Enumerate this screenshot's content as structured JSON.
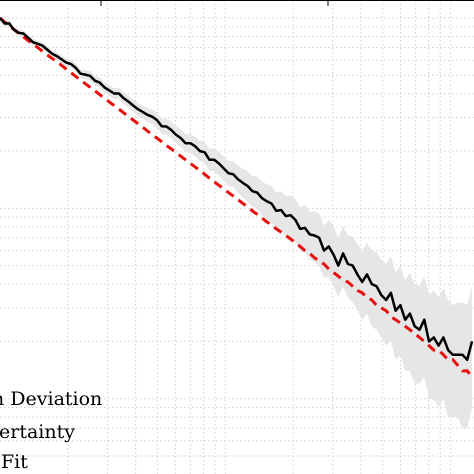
{
  "chart_data": {
    "type": "line",
    "scale": "log-log",
    "grid": true,
    "legend": {
      "placement": "bottom-left",
      "entries": [
        "n Deviation",
        "ertainty",
        "Fit"
      ]
    },
    "x": [
      1.0,
      1.05,
      1.1,
      1.15,
      1.21,
      1.27,
      1.33,
      1.4,
      1.47,
      1.54,
      1.62,
      1.7,
      1.79,
      1.88,
      1.97,
      2.07,
      2.17,
      2.28,
      2.39,
      2.51,
      2.64,
      2.77,
      2.91,
      3.05,
      3.21,
      3.37,
      3.53,
      3.71,
      3.9,
      4.09,
      4.3,
      4.51,
      4.74,
      4.97,
      5.22,
      5.48,
      5.76,
      6.04,
      6.35,
      6.66,
      7.0,
      7.35,
      7.71,
      8.1,
      8.51,
      8.93,
      9.38,
      9.85,
      10.34,
      10.86,
      11.4,
      11.97,
      12.57,
      13.2,
      13.86,
      14.55,
      15.28,
      16.04,
      16.85,
      17.69,
      18.57,
      19.5,
      20.47,
      21.5,
      22.57,
      23.7,
      24.89,
      26.13,
      27.44,
      28.81,
      30.25,
      31.76,
      33.35,
      35.02,
      36.77,
      38.61,
      40.54,
      42.57,
      44.7,
      46.93,
      49.28,
      51.74,
      54.33,
      57.05,
      59.9,
      62.89,
      66.04,
      69.34,
      72.81,
      76.45,
      80.27,
      84.29,
      88.5,
      92.93,
      97.57,
      102.45,
      107.58,
      112.96,
      118.6,
      124.53
    ],
    "series": [
      {
        "name": "n Deviation",
        "color": "#000000",
        "style": "solid",
        "y": [
          0.1001,
          0.0936,
          0.0937,
          0.0869,
          0.0836,
          0.0829,
          0.0789,
          0.0746,
          0.0732,
          0.0717,
          0.0682,
          0.065,
          0.063,
          0.0605,
          0.0583,
          0.0572,
          0.0547,
          0.051,
          0.0504,
          0.0497,
          0.0468,
          0.0458,
          0.0432,
          0.0417,
          0.0401,
          0.0401,
          0.038,
          0.0364,
          0.0347,
          0.0332,
          0.0321,
          0.031,
          0.0303,
          0.0291,
          0.027,
          0.0269,
          0.0258,
          0.0244,
          0.0234,
          0.022,
          0.022,
          0.0212,
          0.02,
          0.0197,
          0.018,
          0.018,
          0.0172,
          0.0162,
          0.0153,
          0.0151,
          0.0142,
          0.0136,
          0.0131,
          0.0123,
          0.0121,
          0.0113,
          0.0109,
          0.0106,
          0.0097,
          0.0098,
          0.0091,
          0.0092,
          0.0087,
          0.0078,
          0.0079,
          0.0073,
          0.0072,
          0.007,
          0.006,
          0.0063,
          0.0057,
          0.005,
          0.0058,
          0.0051,
          0.005,
          0.0045,
          0.0041,
          0.0045,
          0.004,
          0.0039,
          0.0035,
          0.0033,
          0.0036,
          0.0029,
          0.0031,
          0.0026,
          0.0028,
          0.0024,
          0.0023,
          0.0026,
          0.002,
          0.0021,
          0.0019,
          0.0021,
          0.0018,
          0.0017,
          0.0017,
          0.0017,
          0.0016,
          0.002
        ]
      },
      {
        "name": "ertainty",
        "color": "#e6e6e6",
        "style": "band",
        "lower": [
          0.0966,
          0.0904,
          0.0905,
          0.0838,
          0.0806,
          0.0798,
          0.0759,
          0.0717,
          0.0703,
          0.0688,
          0.0654,
          0.0622,
          0.0602,
          0.0577,
          0.0556,
          0.0544,
          0.052,
          0.0484,
          0.0477,
          0.047,
          0.0441,
          0.0431,
          0.0406,
          0.0391,
          0.0375,
          0.0374,
          0.0354,
          0.0338,
          0.0322,
          0.0307,
          0.0296,
          0.0285,
          0.0277,
          0.0265,
          0.0246,
          0.0244,
          0.0233,
          0.022,
          0.021,
          0.0197,
          0.0196,
          0.0188,
          0.0177,
          0.0173,
          0.0157,
          0.0157,
          0.0149,
          0.0139,
          0.0131,
          0.0129,
          0.012,
          0.0114,
          0.0109,
          0.0102,
          0.01,
          0.0092,
          0.0088,
          0.0085,
          0.0077,
          0.0077,
          0.0071,
          0.0071,
          0.0066,
          0.0059,
          0.0059,
          0.0054,
          0.0052,
          0.005,
          0.0043,
          0.0044,
          0.0039,
          0.0034,
          0.0039,
          0.0034,
          0.0032,
          0.0029,
          0.0026,
          0.0028,
          0.0024,
          0.0023,
          0.0021,
          0.0019,
          0.002,
          0.0016,
          0.0017,
          0.0014,
          0.0014,
          0.0012,
          0.0012,
          0.0013,
          0.001,
          0.001,
          0.0009,
          0.001,
          0.0008,
          0.0008,
          0.0008,
          0.0007,
          0.0007,
          0.0009
        ],
        "upper": [
          0.1037,
          0.0969,
          0.0971,
          0.0902,
          0.0867,
          0.0861,
          0.082,
          0.0777,
          0.0762,
          0.0748,
          0.0712,
          0.0679,
          0.066,
          0.0634,
          0.0612,
          0.0602,
          0.0576,
          0.0537,
          0.0532,
          0.0526,
          0.0496,
          0.0487,
          0.046,
          0.0445,
          0.0428,
          0.043,
          0.0407,
          0.0392,
          0.0374,
          0.0359,
          0.0347,
          0.0337,
          0.033,
          0.0319,
          0.0296,
          0.0296,
          0.0285,
          0.027,
          0.026,
          0.0245,
          0.0246,
          0.0238,
          0.0226,
          0.0223,
          0.0205,
          0.0206,
          0.0198,
          0.0187,
          0.0178,
          0.0177,
          0.0168,
          0.0161,
          0.0157,
          0.0148,
          0.0147,
          0.0138,
          0.0134,
          0.0131,
          0.0121,
          0.0123,
          0.0116,
          0.0117,
          0.0112,
          0.0101,
          0.0104,
          0.0096,
          0.0096,
          0.0094,
          0.0081,
          0.0087,
          0.008,
          0.007,
          0.0081,
          0.0072,
          0.0071,
          0.0065,
          0.006,
          0.0066,
          0.006,
          0.0059,
          0.0054,
          0.0051,
          0.0056,
          0.0046,
          0.005,
          0.0042,
          0.0046,
          0.004,
          0.0039,
          0.0044,
          0.0035,
          0.0037,
          0.0034,
          0.0038,
          0.0033,
          0.0031,
          0.0032,
          0.0032,
          0.0031,
          0.0039
        ]
      },
      {
        "name": "Fit",
        "color": "#e8100c",
        "style": "dashed",
        "y": [
          0.1,
          0.095,
          0.091,
          0.0873,
          0.0832,
          0.0797,
          0.0763,
          0.0731,
          0.07,
          0.067,
          0.064,
          0.0614,
          0.0588,
          0.0562,
          0.0538,
          0.0515,
          0.0493,
          0.0472,
          0.0452,
          0.0433,
          0.0414,
          0.0396,
          0.0379,
          0.0363,
          0.0347,
          0.0332,
          0.0318,
          0.0304,
          0.0291,
          0.0279,
          0.0267,
          0.0255,
          0.0244,
          0.0234,
          0.0224,
          0.0214,
          0.0205,
          0.0196,
          0.0188,
          0.018,
          0.0172,
          0.0165,
          0.0158,
          0.0151,
          0.0144,
          0.0138,
          0.0132,
          0.0127,
          0.0121,
          0.0116,
          0.0111,
          0.0106,
          0.0102,
          0.0097,
          0.0093,
          0.0089,
          0.0085,
          0.0082,
          0.0078,
          0.0075,
          0.0072,
          0.0069,
          0.0066,
          0.0063,
          0.006,
          0.0058,
          0.0055,
          0.0053,
          0.0051,
          0.0048,
          0.0046,
          0.0044,
          0.0042,
          0.0041,
          0.0039,
          0.0037,
          0.0036,
          0.0034,
          0.0033,
          0.0031,
          0.003,
          0.0029,
          0.0027,
          0.0026,
          0.0025,
          0.0024,
          0.0023,
          0.0022,
          0.0021,
          0.002,
          0.0019,
          0.0018,
          0.0018,
          0.0017,
          0.0016,
          0.0016,
          0.0015,
          0.0014,
          0.0014,
          0.0013
        ]
      }
    ]
  }
}
